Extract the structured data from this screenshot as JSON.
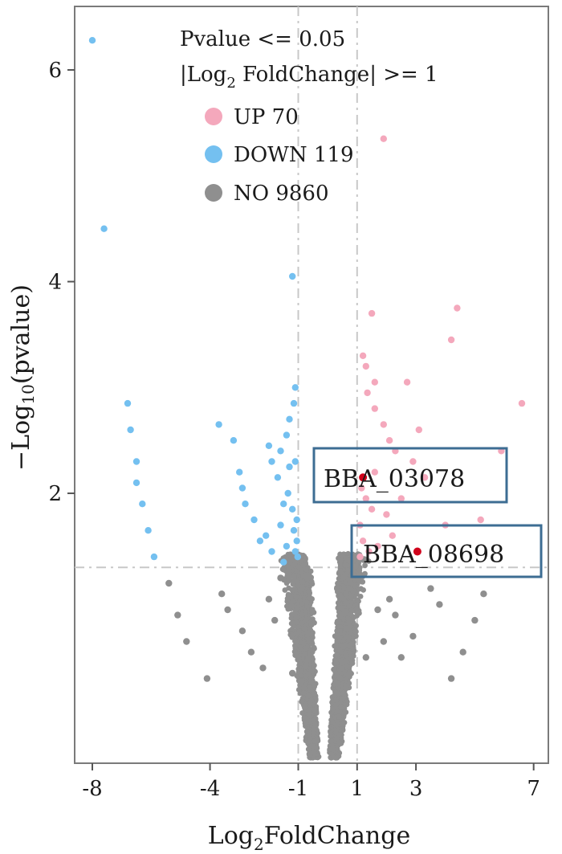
{
  "chart_data": {
    "type": "scatter",
    "xlabel_main": "Log",
    "xlabel_sub": "2",
    "xlabel_rest": "FoldChange",
    "ylabel_main": "−Log",
    "ylabel_sub": "10",
    "ylabel_rest": "(pvalue)",
    "x_ticks": [
      -8,
      -4,
      -1,
      1,
      3,
      7
    ],
    "y_ticks": [
      2,
      4,
      6
    ],
    "xlim": [
      -8.6,
      7.5
    ],
    "ylim": [
      -0.55,
      6.6
    ],
    "grid": false,
    "thresholds": {
      "x": [
        -1,
        1
      ],
      "y": 1.3
    },
    "legend": {
      "position": "top-center",
      "line1": "Pvalue <= 0.05",
      "line2_main": "|Log",
      "line2_sub": "2",
      "line2_rest": " FoldChange| >= 1",
      "entries": [
        {
          "label": "UP 70",
          "color": "#f4a8bc"
        },
        {
          "label": "DOWN 119",
          "color": "#74c0f0"
        },
        {
          "label": "NO 9860",
          "color": "#8f8f8f"
        }
      ]
    },
    "colors": {
      "up": "#f4a8bc",
      "down": "#74c0f0",
      "no": "#8f8f8f",
      "highlight": "#d0021b",
      "box": "#3d6d93",
      "threshold": "#c8c8c8"
    },
    "series": [
      {
        "group": "DOWN",
        "points": [
          [
            -8.0,
            6.28
          ],
          [
            -7.6,
            4.5
          ],
          [
            -6.8,
            2.85
          ],
          [
            -6.7,
            2.6
          ],
          [
            -6.5,
            2.3
          ],
          [
            -6.5,
            2.1
          ],
          [
            -6.3,
            1.9
          ],
          [
            -6.1,
            1.65
          ],
          [
            -5.9,
            1.4
          ],
          [
            -3.7,
            2.65
          ],
          [
            -3.2,
            2.5
          ],
          [
            -3.0,
            2.2
          ],
          [
            -2.9,
            2.05
          ],
          [
            -2.8,
            1.9
          ],
          [
            -2.5,
            1.75
          ],
          [
            -2.3,
            1.55
          ],
          [
            -2.0,
            2.45
          ],
          [
            -1.9,
            2.3
          ],
          [
            -1.7,
            2.15
          ],
          [
            -1.5,
            1.9
          ],
          [
            -1.6,
            1.7
          ],
          [
            -1.4,
            2.55
          ],
          [
            -1.3,
            2.7
          ],
          [
            -1.35,
            2.0
          ],
          [
            -1.2,
            1.85
          ],
          [
            -1.4,
            1.5
          ],
          [
            -1.15,
            1.65
          ],
          [
            -1.1,
            1.45
          ],
          [
            -1.2,
            4.05
          ],
          [
            -1.1,
            3.0
          ],
          [
            -1.15,
            2.85
          ],
          [
            -1.1,
            2.3
          ],
          [
            -1.05,
            1.75
          ],
          [
            -1.05,
            1.55
          ],
          [
            -1.02,
            1.4
          ],
          [
            -1.6,
            2.4
          ],
          [
            -1.3,
            2.25
          ],
          [
            -1.5,
            1.35
          ],
          [
            -1.9,
            1.45
          ],
          [
            -2.1,
            1.6
          ]
        ]
      },
      {
        "group": "UP",
        "points": [
          [
            1.2,
            3.3
          ],
          [
            1.3,
            3.2
          ],
          [
            1.6,
            3.05
          ],
          [
            1.6,
            2.8
          ],
          [
            1.9,
            2.65
          ],
          [
            2.1,
            2.5
          ],
          [
            2.3,
            2.4
          ],
          [
            1.5,
            3.7
          ],
          [
            1.9,
            5.35
          ],
          [
            2.7,
            3.05
          ],
          [
            3.1,
            2.6
          ],
          [
            2.9,
            2.3
          ],
          [
            3.3,
            2.15
          ],
          [
            4.2,
            3.45
          ],
          [
            4.4,
            3.75
          ],
          [
            6.6,
            2.85
          ],
          [
            5.9,
            2.4
          ],
          [
            1.15,
            2.05
          ],
          [
            1.3,
            1.95
          ],
          [
            1.5,
            1.85
          ],
          [
            2.0,
            1.8
          ],
          [
            2.5,
            1.95
          ],
          [
            1.1,
            1.7
          ],
          [
            1.2,
            1.55
          ],
          [
            1.4,
            1.45
          ],
          [
            1.1,
            1.4
          ],
          [
            2.2,
            1.6
          ],
          [
            1.6,
            2.2
          ],
          [
            1.35,
            2.95
          ],
          [
            1.7,
            1.5
          ],
          [
            4.0,
            1.7
          ],
          [
            5.2,
            1.75
          ]
        ]
      },
      {
        "group": "HIGHLIGHT",
        "points": [
          [
            1.2,
            2.15
          ],
          [
            3.05,
            1.45
          ]
        ]
      },
      {
        "group": "NO",
        "points": [
          [
            -5.4,
            1.15
          ],
          [
            -5.1,
            0.85
          ],
          [
            -4.8,
            0.6
          ],
          [
            -4.1,
            0.25
          ],
          [
            -3.4,
            0.9
          ],
          [
            -3.6,
            1.05
          ],
          [
            -2.9,
            0.7
          ],
          [
            -2.6,
            0.5
          ],
          [
            -2.2,
            0.35
          ],
          [
            5.3,
            1.05
          ],
          [
            5.0,
            0.8
          ],
          [
            4.6,
            0.5
          ],
          [
            4.2,
            0.25
          ],
          [
            3.8,
            0.95
          ],
          [
            3.5,
            1.1
          ],
          [
            2.9,
            0.65
          ],
          [
            2.5,
            0.45
          ],
          [
            2.3,
            0.85
          ],
          [
            2.1,
            1.0
          ],
          [
            -2.0,
            1.0
          ],
          [
            -1.8,
            0.8
          ],
          [
            -1.6,
            1.2
          ],
          [
            1.7,
            0.9
          ],
          [
            1.9,
            0.6
          ],
          [
            -1.2,
            0.3
          ],
          [
            1.3,
            0.45
          ]
        ]
      }
    ],
    "annotations": [
      {
        "label": "BBA_03078"
      },
      {
        "label": "BBA_08698"
      }
    ]
  }
}
